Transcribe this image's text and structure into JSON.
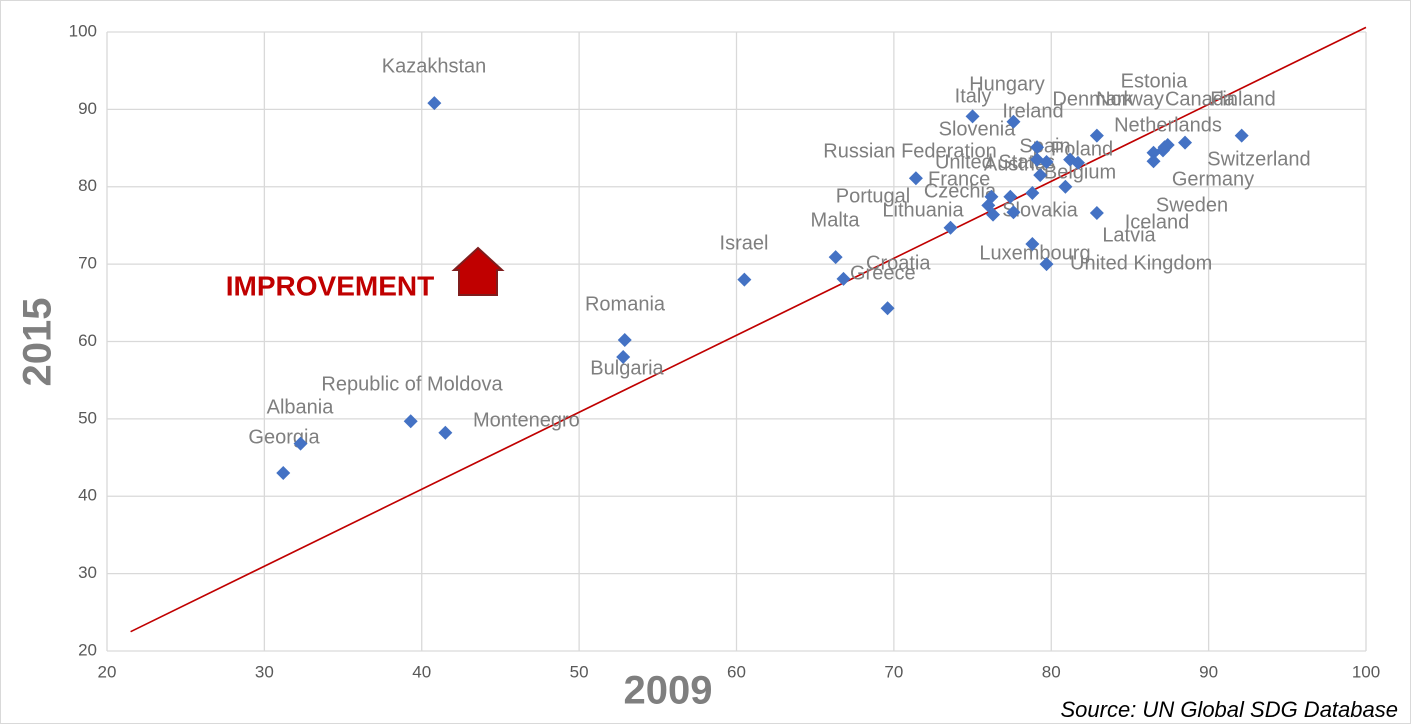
{
  "chart_data": {
    "type": "scatter",
    "x_label": "2009",
    "y_label": "2015",
    "annotation": "IMPROVEMENT",
    "source": "Source: UN Global SDG Database",
    "xlim": [
      20,
      100
    ],
    "ylim": [
      20,
      100
    ],
    "xticks": [
      20,
      30,
      40,
      50,
      60,
      70,
      80,
      90,
      100
    ],
    "yticks": [
      20,
      30,
      40,
      50,
      60,
      70,
      80,
      90,
      100
    ],
    "grid": true,
    "color": "#4472c4",
    "reference_line": {
      "x": [
        21.5,
        100
      ],
      "y": [
        22.5,
        100.6
      ],
      "color": "#c00000"
    },
    "point_labels": [
      "Kazakhstan",
      "Georgia",
      "Albania",
      "Republic of Moldova",
      "Montenegro",
      "Romania",
      "Bulgaria",
      "Israel",
      "Malta",
      "Croatia",
      "Greece",
      "Russian Federation",
      "France",
      "Lithuania",
      "Portugal",
      "Czechia",
      "Slovakia",
      "Latvia",
      "Sweden",
      "Iceland",
      "Luxembourg",
      "United Kingdom",
      "Italy",
      "Hungary",
      "Ireland",
      "Slovenia",
      "Spain",
      "Poland",
      "United States",
      "Austria",
      "Belgium",
      "Netherlands",
      "Denmark",
      "Estonia",
      "Norway",
      "Canada",
      "Finland",
      "Switzerland",
      "Germany"
    ],
    "x": [
      40.8,
      31.2,
      32.3,
      39.3,
      41.5,
      52.9,
      52.8,
      60.5,
      66.3,
      69.6,
      66.8,
      71.4,
      76.2,
      73.6,
      76.0,
      77.4,
      77.6,
      76.3,
      78.8,
      82.9,
      78.8,
      79.7,
      75.0,
      77.6,
      79.1,
      79.1,
      81.2,
      81.7,
      79.7,
      79.3,
      80.9,
      82.9,
      87.2,
      87.4,
      87.1,
      88.5,
      92.1,
      86.5,
      86.5
    ],
    "values": [
      90.8,
      43.0,
      46.8,
      49.7,
      48.2,
      60.2,
      58.0,
      68.0,
      70.9,
      64.3,
      68.1,
      81.1,
      78.7,
      74.7,
      77.6,
      78.7,
      76.7,
      76.4,
      79.2,
      76.6,
      72.6,
      70.0,
      89.1,
      88.4,
      85.1,
      83.5,
      83.5,
      83.1,
      83.2,
      81.5,
      80.0,
      86.6,
      85.1,
      85.4,
      84.7,
      85.7,
      86.6,
      84.4,
      83.3
    ]
  }
}
